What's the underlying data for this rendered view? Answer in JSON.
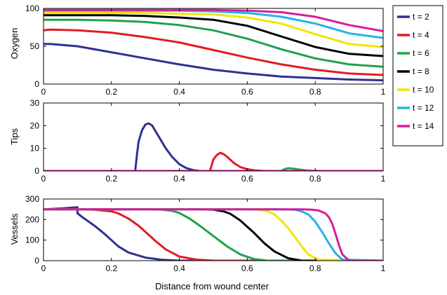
{
  "figure": {
    "xlabel": "Distance from wound center",
    "x_ticks": [
      "0",
      "0.2",
      "0.4",
      "0.6",
      "0.8",
      "1"
    ],
    "legend": {
      "placement": "right",
      "entries": [
        {
          "label": "t = 2",
          "color": "#2e3192"
        },
        {
          "label": "t = 4",
          "color": "#e31b23"
        },
        {
          "label": "t = 6",
          "color": "#1fa24a"
        },
        {
          "label": "t = 8",
          "color": "#000000"
        },
        {
          "label": "t = 10",
          "color": "#f2e500"
        },
        {
          "label": "t = 12",
          "color": "#23b4e6"
        },
        {
          "label": "t = 14",
          "color": "#d81b9c"
        }
      ]
    }
  },
  "chart_data": [
    {
      "type": "line",
      "ylabel": "Oxygen",
      "xlim": [
        0,
        1
      ],
      "ylim": [
        0,
        100
      ],
      "y_ticks": [
        "0",
        "50",
        "100"
      ],
      "series": [
        {
          "name": "t = 2",
          "x": [
            0,
            0.02,
            0.1,
            0.2,
            0.3,
            0.4,
            0.5,
            0.6,
            0.7,
            0.8,
            0.9,
            1.0
          ],
          "y": [
            53,
            53,
            50,
            42,
            34,
            26,
            19,
            14,
            10,
            8,
            6,
            5
          ]
        },
        {
          "name": "t = 4",
          "x": [
            0,
            0.02,
            0.1,
            0.2,
            0.3,
            0.4,
            0.5,
            0.6,
            0.7,
            0.8,
            0.9,
            1.0
          ],
          "y": [
            71,
            72,
            71,
            68,
            62,
            55,
            45,
            35,
            26,
            19,
            14,
            12
          ]
        },
        {
          "name": "t = 6",
          "x": [
            0,
            0.02,
            0.1,
            0.2,
            0.3,
            0.4,
            0.5,
            0.6,
            0.7,
            0.8,
            0.9,
            1.0
          ],
          "y": [
            85,
            85,
            85,
            84,
            82,
            78,
            71,
            60,
            46,
            34,
            26,
            23
          ]
        },
        {
          "name": "t = 8",
          "x": [
            0,
            0.02,
            0.1,
            0.2,
            0.3,
            0.4,
            0.5,
            0.6,
            0.7,
            0.8,
            0.9,
            1.0
          ],
          "y": [
            91,
            91,
            91,
            91,
            90,
            88,
            85,
            77,
            63,
            49,
            40,
            37
          ]
        },
        {
          "name": "t = 10",
          "x": [
            0,
            0.02,
            0.1,
            0.2,
            0.3,
            0.4,
            0.5,
            0.6,
            0.7,
            0.8,
            0.9,
            1.0
          ],
          "y": [
            94,
            94,
            94,
            94,
            94,
            93,
            92,
            88,
            80,
            66,
            53,
            49
          ]
        },
        {
          "name": "t = 12",
          "x": [
            0,
            0.02,
            0.1,
            0.2,
            0.3,
            0.4,
            0.5,
            0.6,
            0.7,
            0.8,
            0.9,
            1.0
          ],
          "y": [
            97,
            97,
            97,
            97,
            97,
            97,
            96,
            94,
            89,
            80,
            67,
            61
          ]
        },
        {
          "name": "t = 14",
          "x": [
            0,
            0.02,
            0.1,
            0.2,
            0.3,
            0.4,
            0.5,
            0.6,
            0.7,
            0.8,
            0.9,
            1.0
          ],
          "y": [
            98,
            98,
            98,
            98,
            98,
            98,
            98,
            97,
            95,
            89,
            78,
            70
          ]
        }
      ]
    },
    {
      "type": "line",
      "ylabel": "Tips",
      "xlim": [
        0,
        1
      ],
      "ylim": [
        0,
        30
      ],
      "y_ticks": [
        "0",
        "10",
        "20",
        "30"
      ],
      "series": [
        {
          "name": "t = 2",
          "x": [
            0,
            0.27,
            0.275,
            0.28,
            0.29,
            0.3,
            0.31,
            0.32,
            0.34,
            0.36,
            0.38,
            0.4,
            0.42,
            0.44,
            0.46,
            1.0
          ],
          "y": [
            0,
            0,
            7,
            13,
            18,
            20.5,
            21,
            20,
            15,
            10,
            6,
            3,
            1.3,
            0.4,
            0,
            0
          ]
        },
        {
          "name": "t = 4",
          "x": [
            0,
            0.49,
            0.495,
            0.5,
            0.51,
            0.52,
            0.53,
            0.54,
            0.56,
            0.58,
            0.6,
            0.62,
            0.64,
            0.66,
            1.0
          ],
          "y": [
            0,
            0,
            2.5,
            5,
            7,
            8,
            7.5,
            6.3,
            3.6,
            1.7,
            0.8,
            0.3,
            0.1,
            0,
            0
          ]
        },
        {
          "name": "t = 6",
          "x": [
            0,
            0.7,
            0.71,
            0.72,
            0.73,
            0.75,
            0.77,
            0.79,
            0.82,
            1.0
          ],
          "y": [
            0,
            0,
            0.8,
            1.2,
            1.1,
            0.7,
            0.3,
            0.1,
            0,
            0
          ]
        },
        {
          "name": "t = 14",
          "x": [
            0,
            1.0
          ],
          "y": [
            0,
            0
          ]
        }
      ]
    },
    {
      "type": "line",
      "ylabel": "Vessels",
      "xlim": [
        0,
        1
      ],
      "ylim": [
        0,
        300
      ],
      "y_ticks": [
        "0",
        "100",
        "200",
        "300"
      ],
      "series": [
        {
          "name": "t = 2",
          "x": [
            0,
            0.06,
            0.1,
            0.1,
            0.12,
            0.15,
            0.18,
            0.2,
            0.22,
            0.25,
            0.3,
            0.35,
            0.4,
            1.0
          ],
          "y": [
            250,
            255,
            260,
            230,
            205,
            170,
            130,
            100,
            70,
            40,
            15,
            4,
            0,
            0
          ]
        },
        {
          "name": "t = 4",
          "x": [
            0,
            0.1,
            0.15,
            0.2,
            0.22,
            0.25,
            0.28,
            0.3,
            0.33,
            0.36,
            0.4,
            0.45,
            0.5,
            1.0
          ],
          "y": [
            250,
            250,
            248,
            240,
            230,
            205,
            170,
            140,
            95,
            55,
            20,
            5,
            0,
            0
          ]
        },
        {
          "name": "t = 6",
          "x": [
            0,
            0.3,
            0.35,
            0.38,
            0.4,
            0.43,
            0.46,
            0.5,
            0.54,
            0.58,
            0.62,
            0.66,
            1.0
          ],
          "y": [
            250,
            250,
            248,
            242,
            232,
            205,
            170,
            120,
            70,
            30,
            8,
            0,
            0
          ]
        },
        {
          "name": "t = 8",
          "x": [
            0,
            0.45,
            0.5,
            0.53,
            0.55,
            0.58,
            0.6,
            0.62,
            0.65,
            0.68,
            0.72,
            0.76,
            1.0
          ],
          "y": [
            250,
            250,
            248,
            240,
            228,
            195,
            165,
            135,
            85,
            45,
            12,
            0,
            0
          ]
        },
        {
          "name": "t = 10",
          "x": [
            0,
            0.6,
            0.64,
            0.66,
            0.68,
            0.7,
            0.72,
            0.74,
            0.76,
            0.78,
            0.81,
            1.0
          ],
          "y": [
            250,
            250,
            247,
            240,
            225,
            195,
            160,
            115,
            70,
            30,
            5,
            0
          ]
        },
        {
          "name": "t = 12",
          "x": [
            0,
            0.7,
            0.74,
            0.76,
            0.78,
            0.8,
            0.82,
            0.84,
            0.86,
            0.88,
            1.0
          ],
          "y": [
            250,
            250,
            248,
            240,
            225,
            190,
            140,
            85,
            35,
            5,
            0
          ]
        },
        {
          "name": "t = 14",
          "x": [
            0,
            0.76,
            0.79,
            0.81,
            0.83,
            0.84,
            0.85,
            0.86,
            0.87,
            0.88,
            0.9,
            1.0
          ],
          "y": [
            250,
            250,
            248,
            244,
            230,
            212,
            180,
            130,
            75,
            30,
            0,
            0
          ]
        }
      ]
    }
  ]
}
